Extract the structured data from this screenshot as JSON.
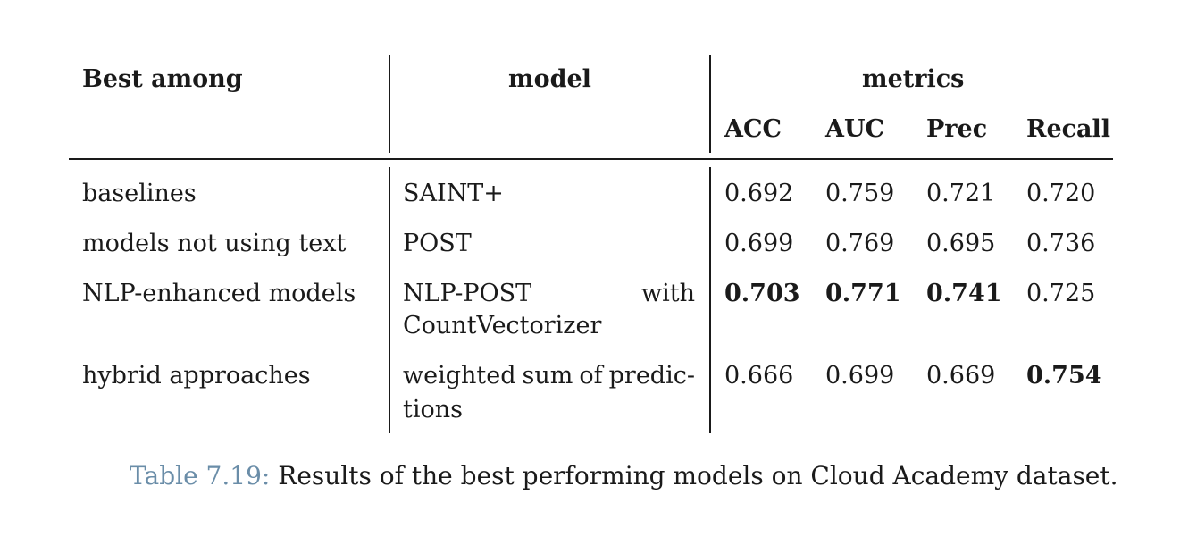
{
  "table": {
    "headers": {
      "best_among": "Best among",
      "model": "model",
      "metrics": "metrics",
      "acc": "ACC",
      "auc": "AUC",
      "prec": "Prec",
      "recall": "Recall"
    },
    "rows": [
      {
        "best_among": "baselines",
        "model_line1": "SAINT+",
        "acc": "0.692",
        "auc": "0.759",
        "prec": "0.721",
        "recall": "0.720",
        "bold": {
          "acc": false,
          "auc": false,
          "prec": false,
          "recall": false
        }
      },
      {
        "best_among": "models not using text",
        "model_line1": "POST",
        "acc": "0.699",
        "auc": "0.769",
        "prec": "0.695",
        "recall": "0.736",
        "bold": {
          "acc": false,
          "auc": false,
          "prec": false,
          "recall": false
        }
      },
      {
        "best_among": "NLP-enhanced models",
        "model_line1_left": "NLP-POST",
        "model_line1_right": "with",
        "model_line2": "CountVectorizer",
        "acc": "0.703",
        "auc": "0.771",
        "prec": "0.741",
        "recall": "0.725",
        "bold": {
          "acc": true,
          "auc": true,
          "prec": true,
          "recall": false
        }
      },
      {
        "best_among": "hybrid approaches",
        "model_line1_words": [
          "weighted",
          "sum",
          "of",
          "predic-"
        ],
        "model_line2": "tions",
        "acc": "0.666",
        "auc": "0.699",
        "prec": "0.669",
        "recall": "0.754",
        "bold": {
          "acc": false,
          "auc": false,
          "prec": false,
          "recall": true
        }
      }
    ]
  },
  "caption": {
    "label": "Table 7.19:",
    "text": "Results of the best performing models on Cloud Academy dataset."
  },
  "colors": {
    "text": "#1a1a1a",
    "caption_label": "#6a8da8"
  }
}
